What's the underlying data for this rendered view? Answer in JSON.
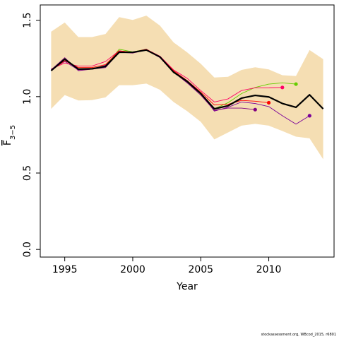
{
  "chart_data": {
    "type": "line",
    "xlabel": "Year",
    "ylabel": "F",
    "ylabel_sub": "3−5",
    "xlim": [
      1993.2,
      2014.8
    ],
    "ylim": [
      -0.05,
      1.6
    ],
    "x_ticks": [
      1995,
      2000,
      2005,
      2010
    ],
    "y_ticks": [
      0.0,
      0.5,
      1.0,
      1.5
    ],
    "y_tick_labels": [
      "0.0",
      "0.5",
      "1.0",
      "1.5"
    ],
    "grid": false,
    "confidence_band": {
      "color": "#F5DEB3",
      "x": [
        1994,
        1995,
        1996,
        1997,
        1998,
        1999,
        2000,
        2001,
        2002,
        2003,
        2004,
        2005,
        2006,
        2007,
        2008,
        2009,
        2010,
        2011,
        2012,
        2013,
        2014
      ],
      "lower": [
        0.92,
        1.01,
        0.975,
        0.977,
        0.995,
        1.075,
        1.075,
        1.085,
        1.045,
        0.965,
        0.905,
        0.835,
        0.72,
        0.765,
        0.81,
        0.822,
        0.81,
        0.775,
        0.738,
        0.727,
        0.59
      ],
      "upper": [
        1.425,
        1.485,
        1.39,
        1.39,
        1.41,
        1.52,
        1.502,
        1.53,
        1.465,
        1.355,
        1.29,
        1.215,
        1.125,
        1.13,
        1.175,
        1.192,
        1.178,
        1.14,
        1.135,
        1.305,
        1.245
      ]
    },
    "series": [
      {
        "color": "#000000",
        "width": 2.2,
        "end_marker": false,
        "x": [
          1994,
          1995,
          1996,
          1997,
          1998,
          1999,
          2000,
          2001,
          2002,
          2003,
          2004,
          2005,
          2006,
          2007,
          2008,
          2009,
          2010,
          2011,
          2012,
          2013,
          2014
        ],
        "y": [
          1.17,
          1.245,
          1.18,
          1.182,
          1.198,
          1.29,
          1.29,
          1.305,
          1.26,
          1.16,
          1.1,
          1.02,
          0.92,
          0.94,
          0.99,
          1.008,
          0.998,
          0.955,
          0.93,
          1.012,
          0.92
        ]
      },
      {
        "color": "#7A0099",
        "width": 0.9,
        "end_marker": true,
        "x": [
          1994,
          1995,
          1996,
          1997,
          1998,
          1999,
          2000,
          2001,
          2002,
          2003,
          2004,
          2005,
          2006,
          2007,
          2008,
          2009,
          2010,
          2011,
          2012,
          2013
        ],
        "y": [
          1.18,
          1.23,
          1.175,
          1.18,
          1.205,
          1.295,
          1.29,
          1.31,
          1.258,
          1.165,
          1.09,
          1.02,
          0.905,
          0.93,
          0.965,
          0.955,
          0.935,
          0.875,
          0.82,
          0.875
        ]
      },
      {
        "color": "#66CC00",
        "width": 0.9,
        "end_marker": true,
        "x": [
          1994,
          1995,
          1996,
          1997,
          1998,
          1999,
          2000,
          2001,
          2002,
          2003,
          2004,
          2005,
          2006,
          2007,
          2008,
          2009,
          2010,
          2011,
          2012
        ],
        "y": [
          1.175,
          1.25,
          1.18,
          1.182,
          1.2,
          1.31,
          1.293,
          1.31,
          1.26,
          1.17,
          1.095,
          1.02,
          0.92,
          0.96,
          1.02,
          1.06,
          1.082,
          1.09,
          1.082
        ]
      },
      {
        "color": "#FF0066",
        "width": 0.9,
        "end_marker": true,
        "x": [
          1994,
          1995,
          1996,
          1997,
          1998,
          1999,
          2000,
          2001,
          2002,
          2003,
          2004,
          2005,
          2006,
          2007,
          2008,
          2009,
          2010,
          2011
        ],
        "y": [
          1.18,
          1.22,
          1.2,
          1.2,
          1.23,
          1.3,
          1.29,
          1.31,
          1.265,
          1.175,
          1.12,
          1.04,
          0.965,
          0.985,
          1.04,
          1.058,
          1.058,
          1.06
        ]
      },
      {
        "color": "#FF0000",
        "width": 0.9,
        "end_marker": true,
        "x": [
          1994,
          1995,
          1996,
          1997,
          1998,
          1999,
          2000,
          2001,
          2002,
          2003,
          2004,
          2005,
          2006,
          2007,
          2008,
          2009,
          2010
        ],
        "y": [
          1.17,
          1.235,
          1.19,
          1.19,
          1.21,
          1.3,
          1.29,
          1.31,
          1.262,
          1.17,
          1.105,
          1.03,
          0.945,
          0.95,
          0.975,
          0.97,
          0.96
        ]
      },
      {
        "color": "#800080",
        "width": 0.9,
        "end_marker": true,
        "x": [
          1994,
          1995,
          1996,
          1997,
          1998,
          1999,
          2000,
          2001,
          2002,
          2003,
          2004,
          2005,
          2006,
          2007,
          2008,
          2009
        ],
        "y": [
          1.175,
          1.255,
          1.17,
          1.18,
          1.19,
          1.29,
          1.285,
          1.305,
          1.255,
          1.16,
          1.09,
          1.01,
          0.91,
          0.925,
          0.925,
          0.915
        ]
      }
    ]
  },
  "footer": "stockassessment.org, WBcod_2015, r6801"
}
